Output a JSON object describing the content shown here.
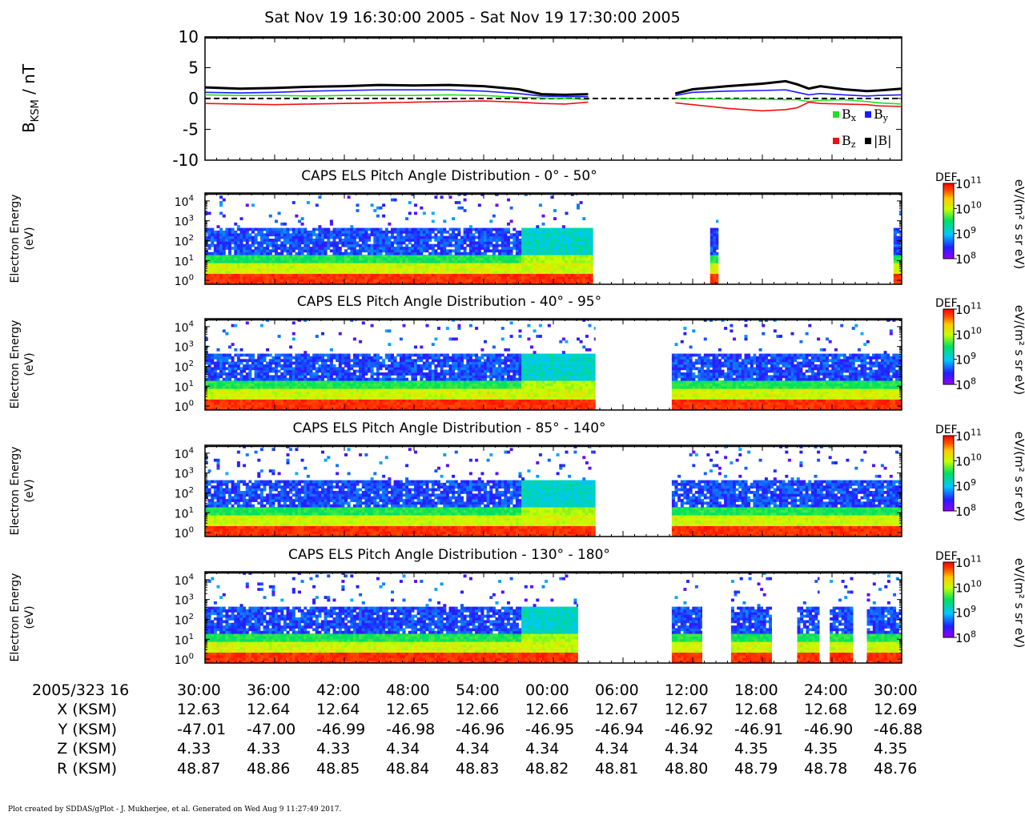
{
  "title": "Sat Nov 19 16:30:00 2005 - Sat Nov 19 17:30:00 2005",
  "footer": "Plot created by SDDAS/gPlot - J. Mukherjee, et al.  Generated on Wed Aug 9 11:27:49 2017.",
  "colors": {
    "bx": "#22dd22",
    "by": "#1a1aff",
    "bz": "#ee1111",
    "bmag": "#000000"
  },
  "chart_data": [
    {
      "type": "line",
      "ylabel_main": "B",
      "ylabel_sub": "KSM",
      "ylabel_unit": " / nT",
      "ylim": [
        -10,
        10
      ],
      "yticks": [
        10,
        5,
        0,
        -5,
        -10
      ],
      "xlim_min": [
        0,
        60
      ],
      "legend": [
        {
          "key": "bx",
          "base": "B",
          "sub": "x"
        },
        {
          "key": "by",
          "base": "B",
          "sub": "y"
        },
        {
          "key": "bz",
          "base": "B",
          "sub": "z"
        },
        {
          "key": "bmag",
          "base": "|B|",
          "sub": ""
        }
      ],
      "gaps": [
        [
          33.3,
          40.5
        ]
      ],
      "series": [
        {
          "key": "bmag",
          "x": [
            0,
            3,
            6,
            9,
            12,
            15,
            18,
            21,
            24,
            27,
            29,
            31,
            33,
            40.5,
            42,
            45,
            48,
            50,
            51,
            52,
            53,
            55,
            57,
            58,
            60
          ],
          "y": [
            1.8,
            1.6,
            1.7,
            1.9,
            2.0,
            2.2,
            2.1,
            2.2,
            2.0,
            1.5,
            0.7,
            0.6,
            0.7,
            0.8,
            1.5,
            2.0,
            2.4,
            2.8,
            2.3,
            1.6,
            2.0,
            1.5,
            1.2,
            1.3,
            1.6
          ]
        },
        {
          "key": "by",
          "x": [
            0,
            3,
            6,
            9,
            12,
            15,
            18,
            21,
            24,
            27,
            29,
            31,
            33,
            40.5,
            42,
            45,
            48,
            50,
            51,
            52,
            53,
            55,
            57,
            58,
            60
          ],
          "y": [
            1.0,
            0.9,
            1.0,
            1.2,
            1.3,
            1.4,
            1.4,
            1.4,
            1.2,
            0.8,
            0.4,
            0.3,
            0.3,
            0.5,
            1.0,
            1.2,
            1.3,
            1.4,
            1.0,
            0.6,
            0.8,
            0.6,
            0.4,
            0.5,
            0.6
          ]
        },
        {
          "key": "bx",
          "x": [
            0,
            3,
            6,
            9,
            12,
            15,
            18,
            21,
            24,
            27,
            29,
            31,
            33,
            40.5,
            42,
            45,
            48,
            50,
            51,
            52,
            53,
            55,
            57,
            58,
            60
          ],
          "y": [
            0.6,
            0.5,
            0.5,
            0.4,
            0.5,
            0.5,
            0.5,
            0.6,
            0.5,
            0.2,
            0.1,
            0.0,
            -0.2,
            0.0,
            0.0,
            -0.1,
            -0.1,
            -0.2,
            -0.2,
            -0.5,
            -0.3,
            -0.2,
            -0.5,
            -0.7,
            -0.9
          ]
        },
        {
          "key": "bz",
          "x": [
            0,
            3,
            6,
            9,
            12,
            15,
            18,
            21,
            24,
            27,
            29,
            31,
            33,
            40.5,
            42,
            45,
            48,
            50,
            51,
            52,
            53,
            55,
            57,
            58,
            60
          ],
          "y": [
            -0.8,
            -0.9,
            -1.0,
            -0.9,
            -0.8,
            -0.7,
            -0.6,
            -0.5,
            -0.4,
            -0.6,
            -0.8,
            -0.9,
            -0.6,
            -0.7,
            -1.0,
            -1.6,
            -2.0,
            -1.8,
            -1.5,
            -0.6,
            -0.8,
            -0.9,
            -1.0,
            -1.2,
            -1.3
          ]
        }
      ]
    },
    {
      "type": "heatmap",
      "title": "CAPS ELS Pitch Angle Distribution - 0° - 50°",
      "ylabel": [
        "Electron Energy",
        "(eV)"
      ],
      "ylim_log10": [
        -0.2,
        4.4
      ],
      "yticks": [
        {
          "base": "10",
          "exp": "4",
          "log": 4
        },
        {
          "base": "10",
          "exp": "3",
          "log": 3
        },
        {
          "base": "10",
          "exp": "2",
          "log": 2
        },
        {
          "base": "10",
          "exp": "1",
          "log": 1
        },
        {
          "base": "10",
          "exp": "0",
          "log": 0
        }
      ],
      "segments": [
        [
          0,
          33.4
        ],
        [
          43.5,
          44.2
        ],
        [
          59.3,
          60
        ]
      ],
      "colorbar": {
        "label": "DEF",
        "unit": "eV/(m² s sr eV)",
        "ticks": [
          {
            "base": "10",
            "exp": "11"
          },
          {
            "base": "10",
            "exp": "10"
          },
          {
            "base": "10",
            "exp": "9"
          },
          {
            "base": "10",
            "exp": "8"
          }
        ]
      }
    },
    {
      "type": "heatmap",
      "title": "CAPS ELS Pitch Angle Distribution - 40° - 95°",
      "ylabel": [
        "Electron Energy",
        "(eV)"
      ],
      "ylim_log10": [
        -0.2,
        4.4
      ],
      "yticks": [
        {
          "base": "10",
          "exp": "4",
          "log": 4
        },
        {
          "base": "10",
          "exp": "3",
          "log": 3
        },
        {
          "base": "10",
          "exp": "2",
          "log": 2
        },
        {
          "base": "10",
          "exp": "1",
          "log": 1
        },
        {
          "base": "10",
          "exp": "0",
          "log": 0
        }
      ],
      "segments": [
        [
          0,
          33.6
        ],
        [
          40.2,
          60
        ]
      ],
      "colorbar": {
        "label": "DEF",
        "unit": "eV/(m² s sr eV)",
        "ticks": [
          {
            "base": "10",
            "exp": "11"
          },
          {
            "base": "10",
            "exp": "10"
          },
          {
            "base": "10",
            "exp": "9"
          },
          {
            "base": "10",
            "exp": "8"
          }
        ]
      }
    },
    {
      "type": "heatmap",
      "title": "CAPS ELS Pitch Angle Distribution - 85° - 140°",
      "ylabel": [
        "Electron Energy",
        "(eV)"
      ],
      "ylim_log10": [
        -0.2,
        4.4
      ],
      "yticks": [
        {
          "base": "10",
          "exp": "4",
          "log": 4
        },
        {
          "base": "10",
          "exp": "3",
          "log": 3
        },
        {
          "base": "10",
          "exp": "2",
          "log": 2
        },
        {
          "base": "10",
          "exp": "1",
          "log": 1
        },
        {
          "base": "10",
          "exp": "0",
          "log": 0
        }
      ],
      "segments": [
        [
          0,
          33.6
        ],
        [
          40.2,
          60
        ]
      ],
      "colorbar": {
        "label": "DEF",
        "unit": "eV/(m² s sr eV)",
        "ticks": [
          {
            "base": "10",
            "exp": "11"
          },
          {
            "base": "10",
            "exp": "10"
          },
          {
            "base": "10",
            "exp": "9"
          },
          {
            "base": "10",
            "exp": "8"
          }
        ]
      }
    },
    {
      "type": "heatmap",
      "title": "CAPS ELS Pitch Angle Distribution - 130° - 180°",
      "ylabel": [
        "Electron Energy",
        "(eV)"
      ],
      "ylim_log10": [
        -0.2,
        4.4
      ],
      "yticks": [
        {
          "base": "10",
          "exp": "4",
          "log": 4
        },
        {
          "base": "10",
          "exp": "3",
          "log": 3
        },
        {
          "base": "10",
          "exp": "2",
          "log": 2
        },
        {
          "base": "10",
          "exp": "1",
          "log": 1
        },
        {
          "base": "10",
          "exp": "0",
          "log": 0
        }
      ],
      "segments": [
        [
          0,
          32.1
        ],
        [
          40.2,
          42.8
        ],
        [
          45.3,
          48.8
        ],
        [
          51.0,
          52.9
        ],
        [
          53.8,
          55.8
        ],
        [
          57.0,
          60
        ]
      ],
      "colorbar": {
        "label": "DEF",
        "unit": "eV/(m² s sr eV)",
        "ticks": [
          {
            "base": "10",
            "exp": "11"
          },
          {
            "base": "10",
            "exp": "10"
          },
          {
            "base": "10",
            "exp": "9"
          },
          {
            "base": "10",
            "exp": "8"
          }
        ]
      }
    }
  ],
  "ephemeris": {
    "row_labels": [
      "2005/323 16",
      "X (KSM)",
      "Y (KSM)",
      "Z (KSM)",
      "R (KSM)"
    ],
    "times": [
      "30:00",
      "36:00",
      "42:00",
      "48:00",
      "54:00",
      "00:00",
      "06:00",
      "12:00",
      "18:00",
      "24:00",
      "30:00"
    ],
    "x": [
      "12.63",
      "12.64",
      "12.64",
      "12.65",
      "12.66",
      "12.66",
      "12.67",
      "12.67",
      "12.68",
      "12.68",
      "12.69"
    ],
    "y": [
      "-47.01",
      "-47.00",
      "-46.99",
      "-46.98",
      "-46.96",
      "-46.95",
      "-46.94",
      "-46.92",
      "-46.91",
      "-46.90",
      "-46.88"
    ],
    "z": [
      "4.33",
      "4.33",
      "4.33",
      "4.34",
      "4.34",
      "4.34",
      "4.34",
      "4.34",
      "4.35",
      "4.35",
      "4.35"
    ],
    "r": [
      "48.87",
      "48.86",
      "48.85",
      "48.84",
      "48.83",
      "48.82",
      "48.81",
      "48.80",
      "48.79",
      "48.78",
      "48.76"
    ]
  }
}
